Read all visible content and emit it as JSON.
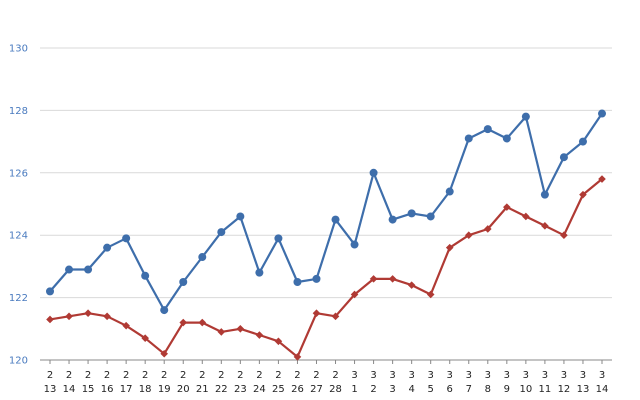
{
  "chart_data": {
    "type": "line",
    "title": "",
    "xlabel": "",
    "ylabel": "",
    "ylim": [
      120,
      130
    ],
    "yticks": [
      120,
      122,
      124,
      126,
      128,
      130
    ],
    "grid": "horizontal",
    "legend": "none",
    "categories": [
      [
        "2",
        "13"
      ],
      [
        "2",
        "14"
      ],
      [
        "2",
        "15"
      ],
      [
        "2",
        "16"
      ],
      [
        "2",
        "17"
      ],
      [
        "2",
        "18"
      ],
      [
        "2",
        "19"
      ],
      [
        "2",
        "20"
      ],
      [
        "2",
        "21"
      ],
      [
        "2",
        "22"
      ],
      [
        "2",
        "23"
      ],
      [
        "2",
        "24"
      ],
      [
        "2",
        "25"
      ],
      [
        "2",
        "26"
      ],
      [
        "2",
        "27"
      ],
      [
        "2",
        "28"
      ],
      [
        "3",
        "1"
      ],
      [
        "3",
        "2"
      ],
      [
        "3",
        "3"
      ],
      [
        "3",
        "4"
      ],
      [
        "3",
        "5"
      ],
      [
        "3",
        "6"
      ],
      [
        "3",
        "7"
      ],
      [
        "3",
        "8"
      ],
      [
        "3",
        "9"
      ],
      [
        "3",
        "10"
      ],
      [
        "3",
        "11"
      ],
      [
        "3",
        "12"
      ],
      [
        "3",
        "13"
      ],
      [
        "3",
        "14"
      ]
    ],
    "series": [
      {
        "color": "#3e6eab",
        "marker": "circle",
        "values": [
          122.2,
          122.9,
          122.9,
          123.6,
          123.9,
          122.7,
          121.6,
          122.5,
          123.3,
          124.1,
          124.6,
          122.8,
          123.9,
          122.5,
          122.6,
          124.5,
          123.7,
          126.0,
          124.5,
          124.7,
          124.6,
          125.4,
          127.1,
          127.4,
          127.1,
          127.8,
          125.3,
          126.5,
          127.0,
          127.9
        ]
      },
      {
        "color": "#b03a34",
        "marker": "diamond",
        "values": [
          121.3,
          121.4,
          121.5,
          121.4,
          121.1,
          120.7,
          120.2,
          121.2,
          121.2,
          120.9,
          121.0,
          120.8,
          120.6,
          120.1,
          121.5,
          121.4,
          122.1,
          122.6,
          122.6,
          122.4,
          122.1,
          123.6,
          124.0,
          124.2,
          124.9,
          124.6,
          124.3,
          124.0,
          125.3,
          125.8
        ]
      }
    ]
  }
}
